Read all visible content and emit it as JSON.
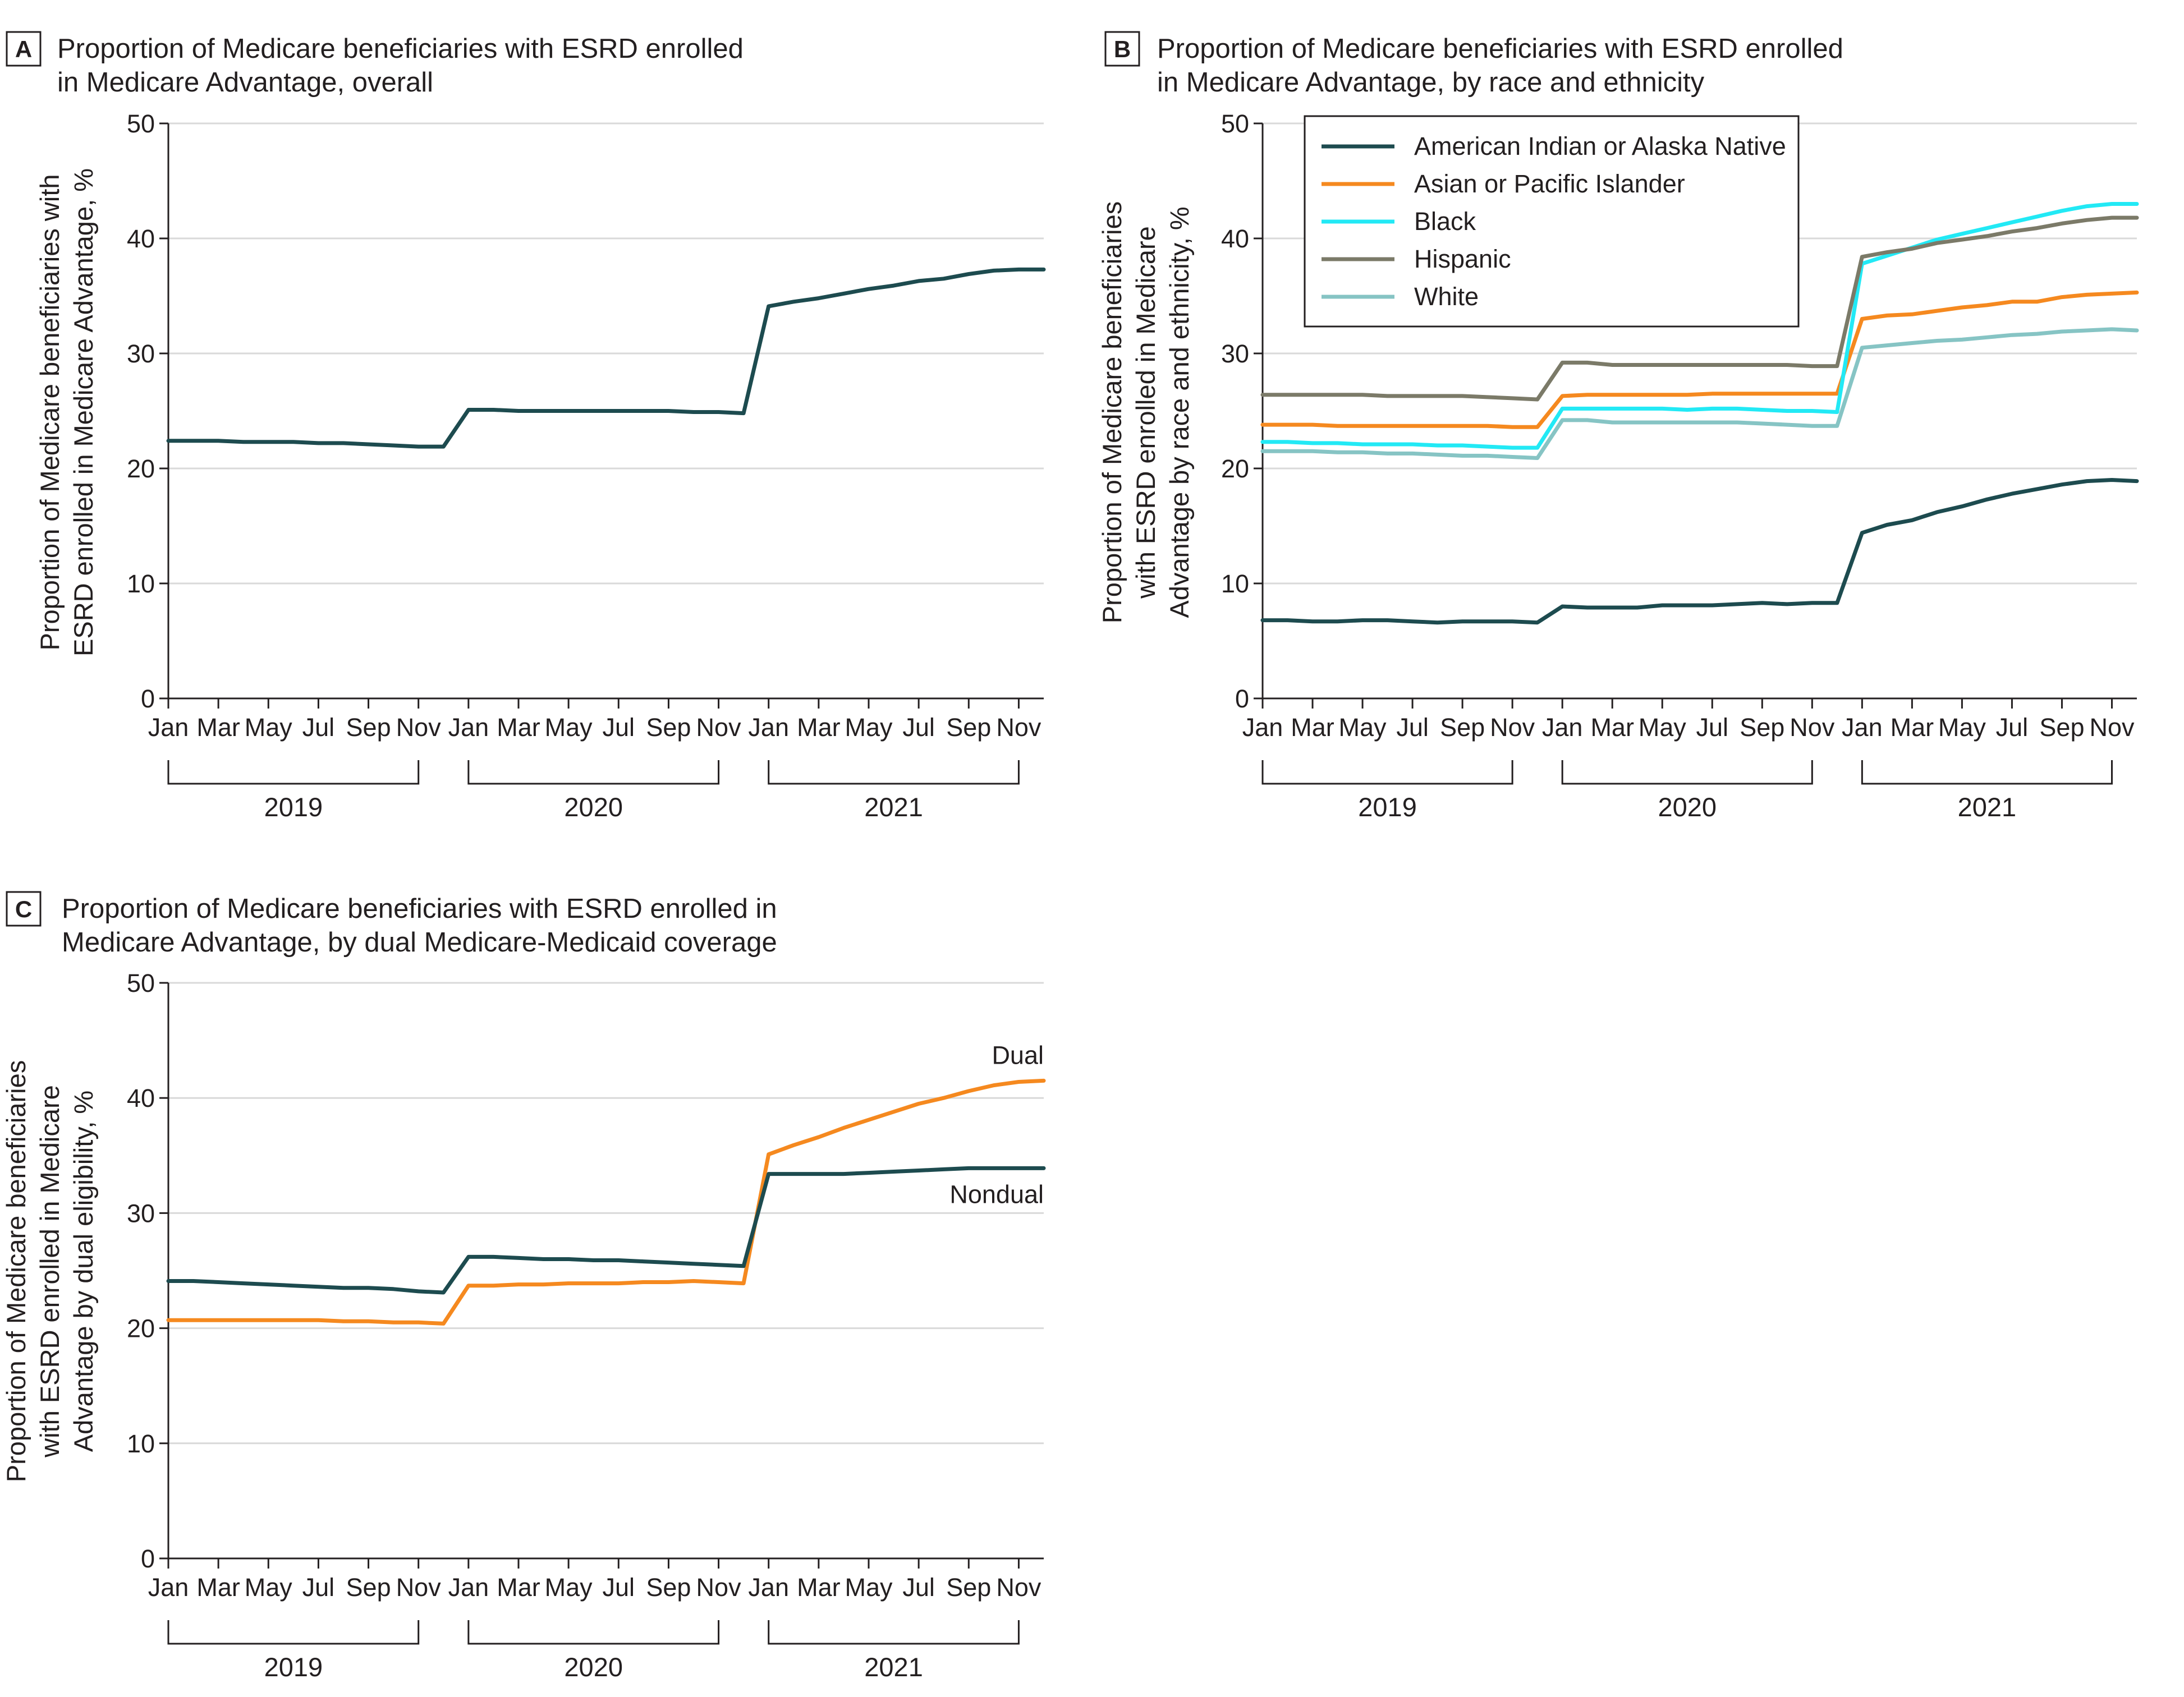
{
  "panels": [
    {
      "letter": "A",
      "title_lines": [
        "Proportion of Medicare beneficiaries with ESRD enrolled",
        "in Medicare Advantage, overall"
      ],
      "ylabel_lines": [
        "Proportion of Medicare beneficiaries with",
        "ESRD enrolled in Medicare Advantage, %"
      ]
    },
    {
      "letter": "B",
      "title_lines": [
        "Proportion of Medicare beneficiaries with ESRD enrolled",
        "in Medicare Advantage, by race and ethnicity"
      ],
      "ylabel_lines": [
        "Proportion of Medicare beneficiaries",
        "with ESRD enrolled in Medicare",
        "Advantage by race and ethnicity, %"
      ]
    },
    {
      "letter": "C",
      "title_lines": [
        "Proportion of Medicare beneficiaries with ESRD enrolled in",
        "Medicare Advantage, by dual Medicare-Medicaid coverage"
      ],
      "ylabel_lines": [
        "Proportion of Medicare beneficiaries",
        "with ESRD enrolled in Medicare",
        "Advantage by dual eligibility, %"
      ]
    }
  ],
  "colors": {
    "dark_teal": "#1d4b4f",
    "orange": "#f5891f",
    "cyan": "#22e9f5",
    "gray_green": "#7b7a68",
    "light_teal": "#86c4c4",
    "grid": "#d9d9d9",
    "axis": "#231f20"
  },
  "chart_data": [
    {
      "panel": "A",
      "type": "line",
      "x_tick_labels": [
        "Jan",
        "Mar",
        "May",
        "Jul",
        "Sep",
        "Nov",
        "Jan",
        "Mar",
        "May",
        "Jul",
        "Sep",
        "Nov",
        "Jan",
        "Mar",
        "May",
        "Jul",
        "Sep",
        "Nov"
      ],
      "year_labels": [
        "2019",
        "2020",
        "2021"
      ],
      "y_ticks": [
        "0",
        "10",
        "20",
        "30",
        "40",
        "50"
      ],
      "ylim": [
        0,
        50
      ],
      "grid": true,
      "series": [
        {
          "color": "#1d4b4f",
          "values": [
            22.4,
            22.4,
            22.4,
            22.3,
            22.3,
            22.3,
            22.2,
            22.2,
            22.1,
            22.0,
            21.9,
            21.9,
            25.1,
            25.1,
            25.0,
            25.0,
            25.0,
            25.0,
            25.0,
            25.0,
            25.0,
            24.9,
            24.9,
            24.8,
            34.1,
            34.5,
            34.8,
            35.2,
            35.6,
            35.9,
            36.3,
            36.5,
            36.9,
            37.2,
            37.3,
            37.3
          ]
        }
      ]
    },
    {
      "panel": "B",
      "type": "line",
      "x_tick_labels": [
        "Jan",
        "Mar",
        "May",
        "Jul",
        "Sep",
        "Nov",
        "Jan",
        "Mar",
        "May",
        "Jul",
        "Sep",
        "Nov",
        "Jan",
        "Mar",
        "May",
        "Jul",
        "Sep",
        "Nov"
      ],
      "year_labels": [
        "2019",
        "2020",
        "2021"
      ],
      "y_ticks": [
        "0",
        "10",
        "20",
        "30",
        "40",
        "50"
      ],
      "ylim": [
        0,
        50
      ],
      "grid": true,
      "legend_position": "top-left",
      "series": [
        {
          "name": "American Indian or Alaska Native",
          "color": "#1d4b4f",
          "values": [
            6.8,
            6.8,
            6.7,
            6.7,
            6.8,
            6.8,
            6.7,
            6.6,
            6.7,
            6.7,
            6.7,
            6.6,
            8.0,
            7.9,
            7.9,
            7.9,
            8.1,
            8.1,
            8.1,
            8.2,
            8.3,
            8.2,
            8.3,
            8.3,
            14.4,
            15.1,
            15.5,
            16.2,
            16.7,
            17.3,
            17.8,
            18.2,
            18.6,
            18.9,
            19.0,
            18.9
          ]
        },
        {
          "name": "Asian or Pacific Islander",
          "color": "#f5891f",
          "values": [
            23.8,
            23.8,
            23.8,
            23.7,
            23.7,
            23.7,
            23.7,
            23.7,
            23.7,
            23.7,
            23.6,
            23.6,
            26.3,
            26.4,
            26.4,
            26.4,
            26.4,
            26.4,
            26.5,
            26.5,
            26.5,
            26.5,
            26.5,
            26.5,
            33.0,
            33.3,
            33.4,
            33.7,
            34.0,
            34.2,
            34.5,
            34.5,
            34.9,
            35.1,
            35.2,
            35.3
          ]
        },
        {
          "name": "Black",
          "color": "#22e9f5",
          "values": [
            22.3,
            22.3,
            22.2,
            22.2,
            22.1,
            22.1,
            22.1,
            22.0,
            22.0,
            21.9,
            21.8,
            21.8,
            25.2,
            25.2,
            25.2,
            25.2,
            25.2,
            25.1,
            25.2,
            25.2,
            25.1,
            25.0,
            25.0,
            24.9,
            37.8,
            38.5,
            39.2,
            39.9,
            40.4,
            40.9,
            41.4,
            41.9,
            42.4,
            42.8,
            43.0,
            43.0
          ]
        },
        {
          "name": "Hispanic",
          "color": "#7b7a68",
          "values": [
            26.4,
            26.4,
            26.4,
            26.4,
            26.4,
            26.3,
            26.3,
            26.3,
            26.3,
            26.2,
            26.1,
            26.0,
            29.2,
            29.2,
            29.0,
            29.0,
            29.0,
            29.0,
            29.0,
            29.0,
            29.0,
            29.0,
            28.9,
            28.9,
            38.4,
            38.8,
            39.1,
            39.6,
            39.9,
            40.2,
            40.6,
            40.9,
            41.3,
            41.6,
            41.8,
            41.8
          ]
        },
        {
          "name": "White",
          "color": "#86c4c4",
          "values": [
            21.5,
            21.5,
            21.5,
            21.4,
            21.4,
            21.3,
            21.3,
            21.2,
            21.1,
            21.1,
            21.0,
            20.9,
            24.2,
            24.2,
            24.0,
            24.0,
            24.0,
            24.0,
            24.0,
            24.0,
            23.9,
            23.8,
            23.7,
            23.7,
            30.5,
            30.7,
            30.9,
            31.1,
            31.2,
            31.4,
            31.6,
            31.7,
            31.9,
            32.0,
            32.1,
            32.0
          ]
        }
      ]
    },
    {
      "panel": "C",
      "type": "line",
      "x_tick_labels": [
        "Jan",
        "Mar",
        "May",
        "Jul",
        "Sep",
        "Nov",
        "Jan",
        "Mar",
        "May",
        "Jul",
        "Sep",
        "Nov",
        "Jan",
        "Mar",
        "May",
        "Jul",
        "Sep",
        "Nov"
      ],
      "year_labels": [
        "2019",
        "2020",
        "2021"
      ],
      "y_ticks": [
        "0",
        "10",
        "20",
        "30",
        "40",
        "50"
      ],
      "ylim": [
        0,
        50
      ],
      "grid": true,
      "series": [
        {
          "name": "Dual",
          "color": "#f5891f",
          "values": [
            20.7,
            20.7,
            20.7,
            20.7,
            20.7,
            20.7,
            20.7,
            20.6,
            20.6,
            20.5,
            20.5,
            20.4,
            23.7,
            23.7,
            23.8,
            23.8,
            23.9,
            23.9,
            23.9,
            24.0,
            24.0,
            24.1,
            24.0,
            23.9,
            35.1,
            35.9,
            36.6,
            37.4,
            38.1,
            38.8,
            39.5,
            40.0,
            40.6,
            41.1,
            41.4,
            41.5
          ]
        },
        {
          "name": "Nondual",
          "color": "#1d4b4f",
          "values": [
            24.1,
            24.1,
            24.0,
            23.9,
            23.8,
            23.7,
            23.6,
            23.5,
            23.5,
            23.4,
            23.2,
            23.1,
            26.2,
            26.2,
            26.1,
            26.0,
            26.0,
            25.9,
            25.9,
            25.8,
            25.7,
            25.6,
            25.5,
            25.4,
            33.4,
            33.4,
            33.4,
            33.4,
            33.5,
            33.6,
            33.7,
            33.8,
            33.9,
            33.9,
            33.9,
            33.9
          ]
        }
      ]
    }
  ]
}
